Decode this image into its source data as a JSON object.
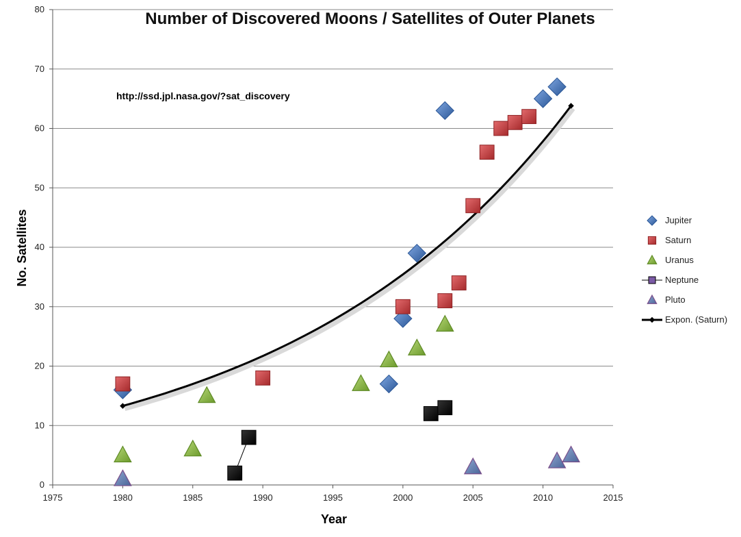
{
  "chart_data": {
    "type": "scatter",
    "title": "Number of Discovered Moons / Satellites of Outer Planets",
    "annotation": "http://ssd.jpl.nasa.gov/?sat_discovery",
    "xlabel": "Year",
    "ylabel": "No. Satellites",
    "xlim": [
      1975,
      2015
    ],
    "ylim": [
      0,
      80
    ],
    "xticks": [
      "1975",
      "1980",
      "1985",
      "1990",
      "1995",
      "2000",
      "2005",
      "2010",
      "2015"
    ],
    "yticks": [
      "0",
      "10",
      "20",
      "30",
      "40",
      "50",
      "60",
      "70",
      "80"
    ],
    "grid": "horizontal",
    "legend_position": "right",
    "series": [
      {
        "name": "Jupiter",
        "marker": "diamond",
        "color": "#3F6FB5",
        "points": [
          [
            1980,
            16
          ],
          [
            1999,
            17
          ],
          [
            2000,
            28
          ],
          [
            2001,
            39
          ],
          [
            2003,
            63
          ],
          [
            2010,
            65
          ],
          [
            2011,
            67
          ]
        ]
      },
      {
        "name": "Saturn",
        "marker": "square",
        "color": "#C0393B",
        "points": [
          [
            1980,
            17
          ],
          [
            1990,
            18
          ],
          [
            2000,
            30
          ],
          [
            2003,
            31
          ],
          [
            2004,
            34
          ],
          [
            2005,
            47
          ],
          [
            2006,
            56
          ],
          [
            2007,
            60
          ],
          [
            2008,
            61
          ],
          [
            2009,
            62
          ]
        ]
      },
      {
        "name": "Uranus",
        "marker": "triangle",
        "color": "#8DB33B",
        "points": [
          [
            1980,
            5
          ],
          [
            1985,
            6
          ],
          [
            1986,
            15
          ],
          [
            1997,
            17
          ],
          [
            1999,
            21
          ],
          [
            2001,
            23
          ],
          [
            2003,
            27
          ]
        ]
      },
      {
        "name": "Neptune",
        "marker": "square",
        "color": "#111111",
        "line": true,
        "points": [
          [
            1988,
            2
          ],
          [
            1989,
            8
          ],
          [
            2002,
            12
          ],
          [
            2003,
            13
          ]
        ]
      },
      {
        "name": "Pluto",
        "marker": "triangle",
        "color": "#5B7DB0",
        "points": [
          [
            1980,
            1
          ],
          [
            2005,
            3
          ],
          [
            2011,
            4
          ],
          [
            2012,
            5
          ]
        ]
      }
    ],
    "trendline": {
      "name": "Expon. (Saturn)",
      "type": "exponential",
      "x_range": [
        1980,
        2012
      ],
      "y_start": 13.3,
      "y_end": 63.8
    }
  }
}
